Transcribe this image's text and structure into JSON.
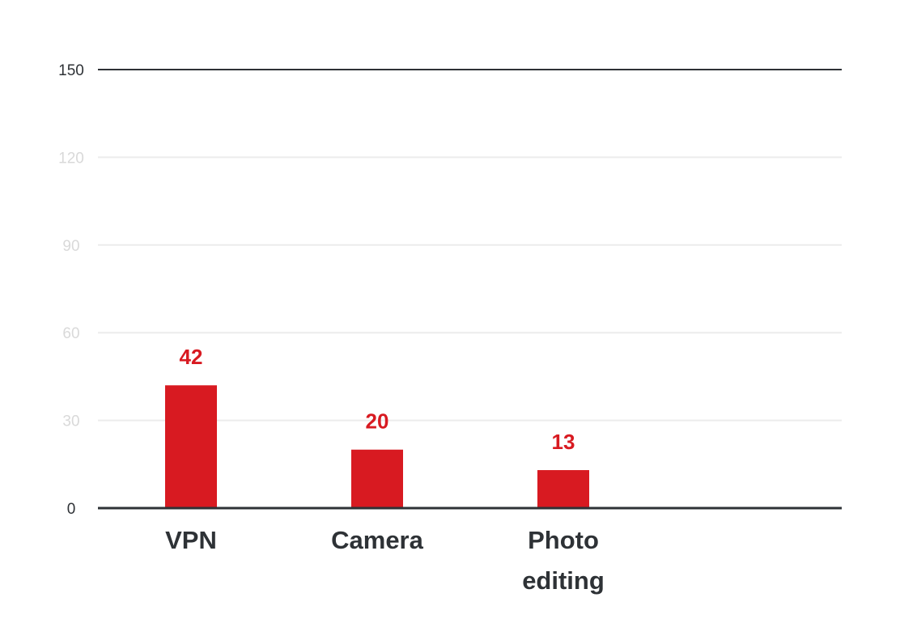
{
  "chart_data": {
    "type": "bar",
    "categories": [
      [
        "VPN"
      ],
      [
        "Camera"
      ],
      [
        "Photo",
        "editing"
      ]
    ],
    "values": [
      42,
      20,
      13
    ],
    "title": "",
    "xlabel": "",
    "ylabel": "",
    "ylim": [
      0,
      150
    ],
    "yticks": [
      "0",
      "30",
      "60",
      "90",
      "120",
      "150"
    ],
    "grid": true,
    "legend": "none"
  },
  "colors": {
    "bar": "#d81a21",
    "value_label": "#d81a21",
    "category_label": "#2e3236",
    "axis_line": "#2e3236",
    "top_line": "#2e3236",
    "grid": "#ececec",
    "tick_top": "#2e3236",
    "tick_zero": "#2e3236",
    "tick_other": "#d9d9d9"
  }
}
